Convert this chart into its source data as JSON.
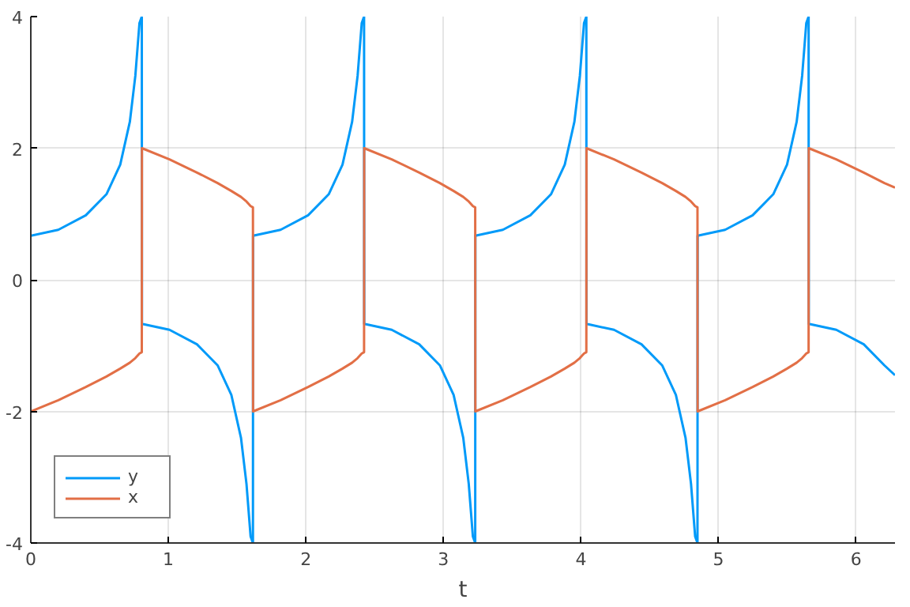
{
  "chart_data": {
    "type": "line",
    "xlabel": "t",
    "xlim": [
      0,
      6.283
    ],
    "ylim": [
      -4,
      4
    ],
    "xticks": [
      0,
      1,
      2,
      3,
      4,
      5,
      6
    ],
    "yticks": [
      -4,
      -2,
      0,
      2,
      4
    ],
    "grid": true,
    "legend": "bottom left",
    "marker": "none",
    "line_style": "solid",
    "x": [
      0,
      0.2,
      0.4,
      0.55,
      0.65,
      0.72,
      0.76,
      0.79,
      0.807,
      0.808,
      1.008,
      1.208,
      1.358,
      1.458,
      1.528,
      1.568,
      1.598,
      1.615,
      1.616,
      1.816,
      2.016,
      2.166,
      2.266,
      2.336,
      2.376,
      2.406,
      2.423,
      2.424,
      2.624,
      2.824,
      2.974,
      3.074,
      3.144,
      3.184,
      3.214,
      3.231,
      3.232,
      3.432,
      3.632,
      3.782,
      3.882,
      3.952,
      3.992,
      4.022,
      4.039,
      4.04,
      4.24,
      4.44,
      4.59,
      4.69,
      4.76,
      4.8,
      4.83,
      4.847,
      4.848,
      5.048,
      5.248,
      5.398,
      5.498,
      5.568,
      5.608,
      5.638,
      5.655,
      5.656,
      5.856,
      6.056,
      6.206,
      6.283
    ],
    "series": [
      {
        "name": "y",
        "color": "#009af9",
        "values": [
          0.67,
          0.76,
          0.98,
          1.3,
          1.75,
          2.4,
          3.1,
          3.9,
          4,
          -0.67,
          -0.76,
          -0.98,
          -1.3,
          -1.75,
          -2.4,
          -3.1,
          -3.9,
          -4,
          0.67,
          0.76,
          0.98,
          1.3,
          1.75,
          2.4,
          3.1,
          3.9,
          4,
          -0.67,
          -0.76,
          -0.98,
          -1.3,
          -1.75,
          -2.4,
          -3.1,
          -3.9,
          -4,
          0.67,
          0.76,
          0.98,
          1.3,
          1.75,
          2.4,
          3.1,
          3.9,
          4,
          -0.67,
          -0.76,
          -0.98,
          -1.3,
          -1.75,
          -2.4,
          -3.1,
          -3.9,
          -4,
          0.67,
          0.76,
          0.98,
          1.3,
          1.75,
          2.4,
          3.1,
          3.9,
          4,
          -0.67,
          -0.76,
          -0.98,
          -1.3,
          -1.45
        ]
      },
      {
        "name": "x",
        "color": "#e26f46",
        "values": [
          -2,
          -1.83,
          -1.63,
          -1.47,
          -1.35,
          -1.26,
          -1.19,
          -1.12,
          -1.1,
          2,
          1.83,
          1.63,
          1.47,
          1.35,
          1.26,
          1.19,
          1.12,
          1.1,
          -2,
          -1.83,
          -1.63,
          -1.47,
          -1.35,
          -1.26,
          -1.19,
          -1.12,
          -1.1,
          2,
          1.83,
          1.63,
          1.47,
          1.35,
          1.26,
          1.19,
          1.12,
          1.1,
          -2,
          -1.83,
          -1.63,
          -1.47,
          -1.35,
          -1.26,
          -1.19,
          -1.12,
          -1.1,
          2,
          1.83,
          1.63,
          1.47,
          1.35,
          1.26,
          1.19,
          1.12,
          1.1,
          -2,
          -1.83,
          -1.63,
          -1.47,
          -1.35,
          -1.26,
          -1.19,
          -1.12,
          -1.1,
          2,
          1.83,
          1.63,
          1.47,
          1.4
        ]
      }
    ]
  }
}
